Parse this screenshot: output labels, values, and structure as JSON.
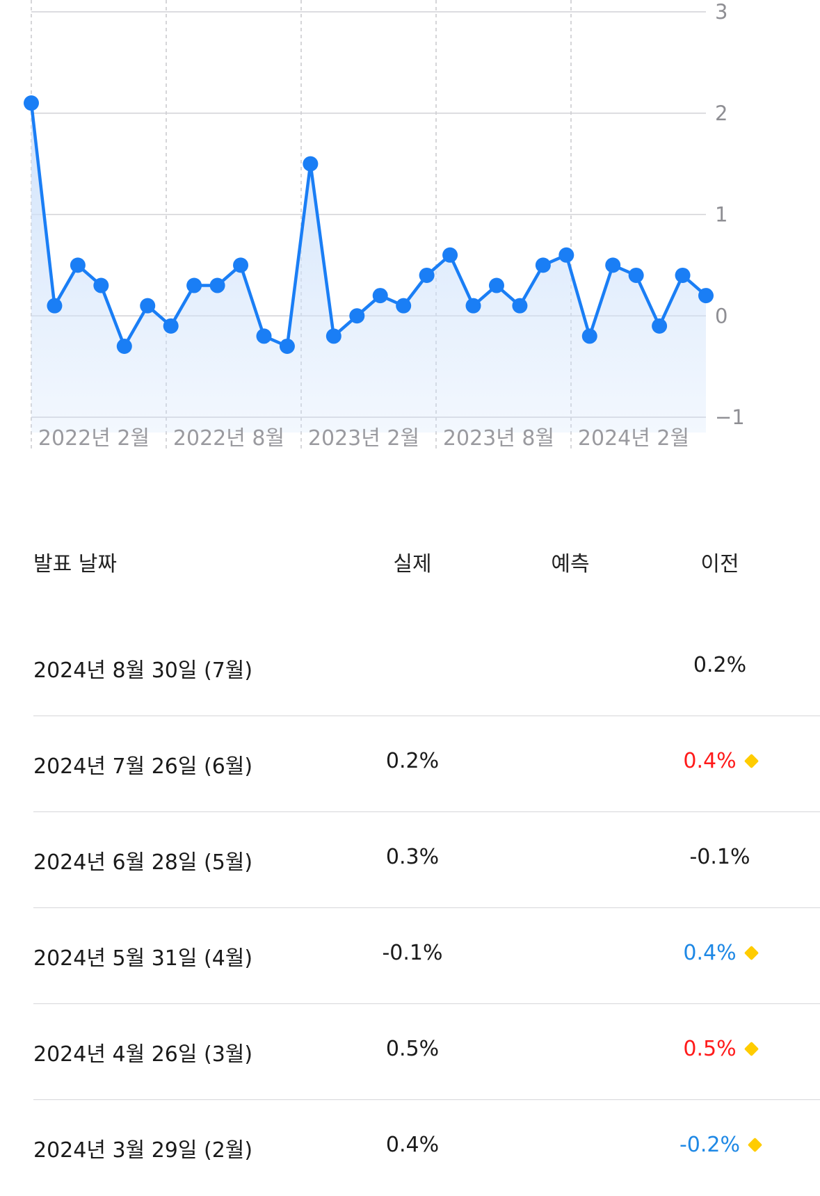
{
  "colors": {
    "line": "#1a7ef5",
    "fill_top": "#cfe2fb",
    "grid": "#d1d1d6",
    "up": "#ff1a1a",
    "down": "#1e88e5",
    "neutral": "#1a1a1a",
    "marker": "#ffcc00"
  },
  "chart_data": {
    "type": "line",
    "x_tick_labels": [
      "2022년 2월",
      "2022년 8월",
      "2023년 2월",
      "2023년 8월",
      "2024년 2월"
    ],
    "y_ticks": [
      3,
      2,
      1,
      0,
      -1
    ],
    "ylim": [
      -1,
      3
    ],
    "grid": true,
    "series": [
      {
        "values": [
          2.1,
          0.1,
          0.5,
          0.3,
          -0.3,
          0.1,
          -0.1,
          0.3,
          0.3,
          0.5,
          -0.2,
          -0.3,
          1.5,
          -0.2,
          0.0,
          0.2,
          0.1,
          0.4,
          0.6,
          0.1,
          0.3,
          0.1,
          0.5,
          0.6,
          -0.2,
          0.5,
          0.4,
          -0.1,
          0.4,
          0.2
        ]
      }
    ]
  },
  "table": {
    "headers": {
      "date": "발표 날짜",
      "actual": "실제",
      "forecast": "예측",
      "previous": "이전"
    },
    "rows": [
      {
        "date": "2024년 8월 30일 (7월)",
        "actual": "",
        "forecast": "",
        "previous": "0.2%",
        "previous_tone": "neutral",
        "revised": false
      },
      {
        "date": "2024년 7월 26일 (6월)",
        "actual": "0.2%",
        "forecast": "",
        "previous": "0.4%",
        "previous_tone": "up",
        "revised": true
      },
      {
        "date": "2024년 6월 28일 (5월)",
        "actual": "0.3%",
        "forecast": "",
        "previous": "-0.1%",
        "previous_tone": "neutral",
        "revised": false
      },
      {
        "date": "2024년 5월 31일 (4월)",
        "actual": "-0.1%",
        "forecast": "",
        "previous": "0.4%",
        "previous_tone": "down",
        "revised": true
      },
      {
        "date": "2024년 4월 26일 (3월)",
        "actual": "0.5%",
        "forecast": "",
        "previous": "0.5%",
        "previous_tone": "up",
        "revised": true
      },
      {
        "date": "2024년 3월 29일 (2월)",
        "actual": "0.4%",
        "forecast": "",
        "previous": "-0.2%",
        "previous_tone": "down",
        "revised": true
      }
    ]
  }
}
